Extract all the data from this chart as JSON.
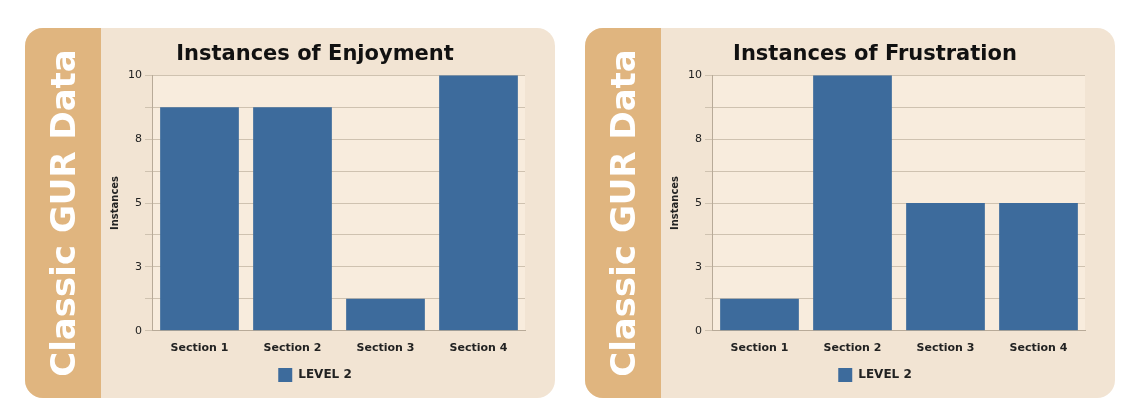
{
  "chart_data": [
    {
      "type": "bar",
      "title": "Instances of Enjoyment",
      "ylabel": "Instances",
      "annotations": [
        "Classic GUR Data"
      ],
      "categories": [
        "Section 1",
        "Section 2",
        "Section 3",
        "Section 4"
      ],
      "series": [
        {
          "name": "LEVEL 2",
          "color": "#3d6b9c",
          "values": [
            8.75,
            8.75,
            1.25,
            10
          ]
        }
      ],
      "ylim": [
        0,
        10
      ],
      "yticks": [
        0,
        {
          "value": 1.25,
          "label": null
        },
        {
          "value": 2.5,
          "label": "3"
        },
        {
          "value": 3.75,
          "label": null
        },
        5,
        {
          "value": 6.25,
          "label": null
        },
        {
          "value": 7.5,
          "label": "8"
        },
        {
          "value": 8.75,
          "label": null
        },
        10
      ],
      "grid": "y",
      "legend": "bottom"
    },
    {
      "type": "bar",
      "title": "Instances of Frustration",
      "ylabel": "Instances",
      "annotations": [
        "Classic GUR Data"
      ],
      "categories": [
        "Section 1",
        "Section 2",
        "Section 3",
        "Section 4"
      ],
      "series": [
        {
          "name": "LEVEL 2",
          "color": "#3d6b9c",
          "values": [
            1.25,
            10,
            5,
            5
          ]
        }
      ],
      "ylim": [
        0,
        10
      ],
      "yticks": [
        0,
        {
          "value": 1.25,
          "label": null
        },
        {
          "value": 2.5,
          "label": "3"
        },
        {
          "value": 3.75,
          "label": null
        },
        5,
        {
          "value": 6.25,
          "label": null
        },
        {
          "value": 7.5,
          "label": "8"
        },
        {
          "value": 8.75,
          "label": null
        },
        10
      ],
      "grid": "y",
      "legend": "bottom"
    }
  ]
}
